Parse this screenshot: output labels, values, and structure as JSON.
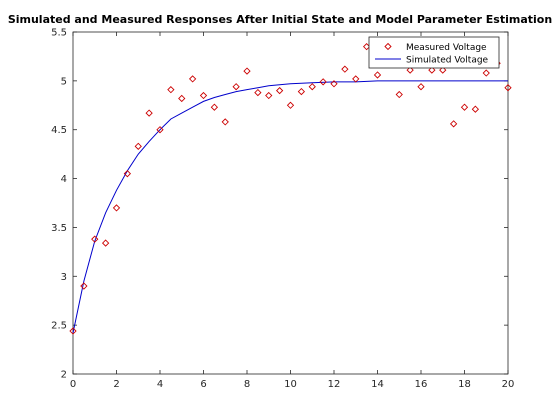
{
  "chart_data": {
    "type": "scatter",
    "title": "Simulated and Measured Responses After Initial State and Model Parameter Estimation",
    "xlabel": "",
    "ylabel": "",
    "xlim": [
      0,
      20
    ],
    "ylim": [
      2,
      5.5
    ],
    "xticks": [
      0,
      2,
      4,
      6,
      8,
      10,
      12,
      14,
      16,
      18,
      20
    ],
    "xtick_labels": [
      "0",
      "2",
      "4",
      "6",
      "8",
      "10",
      "12",
      "14",
      "16",
      "18",
      "20"
    ],
    "yticks": [
      2,
      2.5,
      3,
      3.5,
      4,
      4.5,
      5,
      5.5
    ],
    "ytick_labels": [
      "2",
      "2.5",
      "3",
      "3.5",
      "4",
      "4.5",
      "5",
      "5.5"
    ],
    "grid": false,
    "legend_position": "top-right",
    "series": [
      {
        "name": "Measured Voltage",
        "style": "markers",
        "marker": "diamond",
        "color": "#cc0000",
        "x": [
          0,
          0.5,
          1,
          1.5,
          2,
          2.5,
          3,
          3.5,
          4,
          4.5,
          5,
          5.5,
          6,
          6.5,
          7,
          7.5,
          8,
          8.5,
          9,
          9.5,
          10,
          10.5,
          11,
          11.5,
          12,
          12.5,
          13,
          13.5,
          14,
          14.5,
          15,
          15.5,
          16,
          16.5,
          17,
          17.5,
          18,
          18.5,
          19,
          19.5,
          20
        ],
        "y": [
          2.44,
          2.9,
          3.38,
          3.34,
          3.7,
          4.05,
          4.33,
          4.67,
          4.5,
          4.91,
          4.82,
          5.02,
          4.85,
          4.73,
          4.58,
          4.94,
          5.1,
          4.88,
          4.85,
          4.9,
          4.75,
          4.89,
          4.94,
          4.99,
          4.97,
          5.12,
          5.02,
          5.35,
          5.06,
          5.39,
          4.86,
          5.11,
          4.94,
          5.11,
          5.11,
          4.56,
          4.73,
          4.71,
          5.08,
          5.18,
          4.93
        ]
      },
      {
        "name": "Simulated Voltage",
        "style": "line",
        "color": "#0000cc",
        "x": [
          0,
          0.5,
          1,
          1.5,
          2,
          2.5,
          3,
          3.5,
          4,
          4.5,
          5,
          5.5,
          6,
          6.5,
          7,
          7.5,
          8,
          8.5,
          9,
          9.5,
          10,
          11,
          12,
          13,
          14,
          15,
          16,
          17,
          18,
          19,
          20
        ],
        "y": [
          2.42,
          2.95,
          3.36,
          3.65,
          3.88,
          4.08,
          4.25,
          4.38,
          4.5,
          4.61,
          4.67,
          4.73,
          4.79,
          4.83,
          4.86,
          4.89,
          4.91,
          4.93,
          4.95,
          4.96,
          4.97,
          4.98,
          4.99,
          4.99,
          5.0,
          5.0,
          5.0,
          5.0,
          5.0,
          5.0,
          5.0
        ]
      }
    ]
  }
}
